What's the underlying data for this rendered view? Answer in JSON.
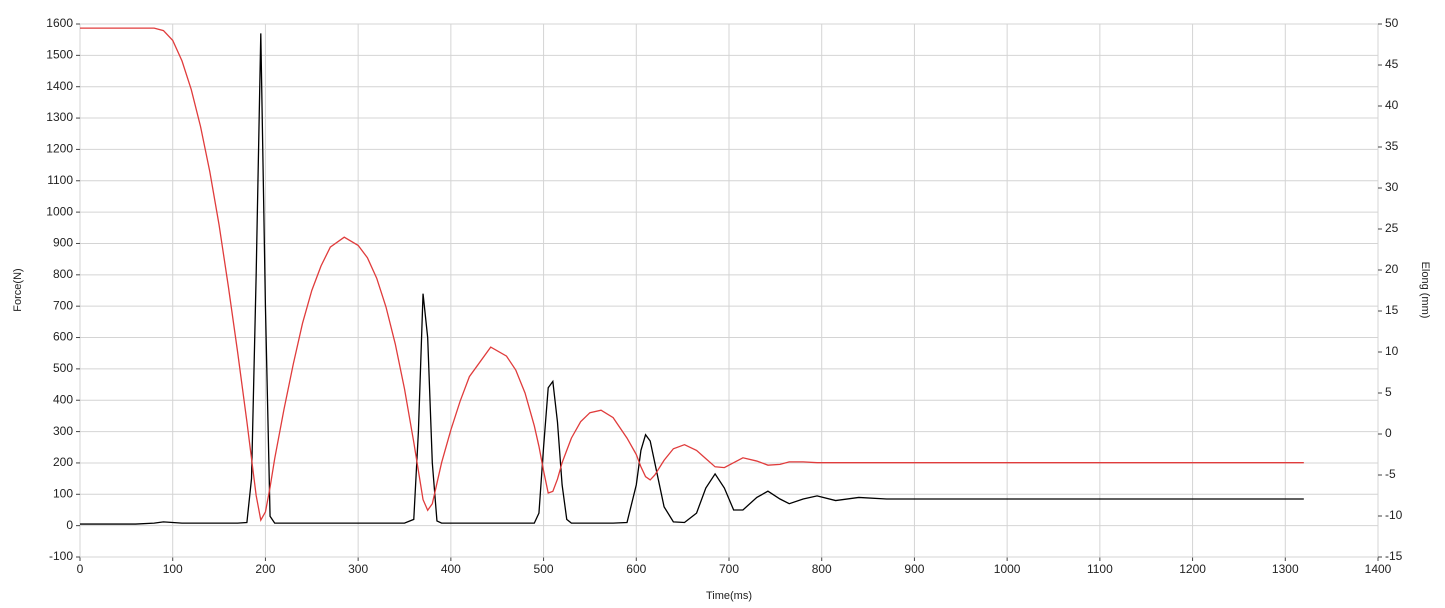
{
  "chart_data": {
    "type": "line",
    "x_label": "Time(ms)",
    "y_label": "Force(N)",
    "y2_label": "Elong (mm)",
    "x": [
      0,
      20,
      40,
      60,
      80,
      90,
      100,
      110,
      120,
      130,
      140,
      150,
      160,
      170,
      180,
      185,
      190,
      195,
      200,
      205,
      210,
      220,
      230,
      240,
      250,
      260,
      270,
      285,
      300,
      310,
      320,
      330,
      340,
      350,
      360,
      365,
      370,
      375,
      380,
      385,
      390,
      400,
      410,
      420,
      443,
      460,
      470,
      480,
      490,
      495,
      500,
      505,
      510,
      515,
      520,
      525,
      530,
      540,
      550,
      562,
      575,
      590,
      600,
      605,
      610,
      615,
      620,
      630,
      640,
      652,
      665,
      675,
      685,
      695,
      705,
      715,
      730,
      742,
      755,
      765,
      780,
      795,
      815,
      840,
      870,
      900,
      1000,
      1100,
      1200,
      1320
    ],
    "series": [
      {
        "name": "Force",
        "color": "#000000",
        "values": [
          5,
          5,
          5,
          5,
          8,
          12,
          10,
          8,
          8,
          8,
          8,
          8,
          8,
          8,
          10,
          150,
          800,
          1570,
          700,
          30,
          8,
          8,
          8,
          8,
          8,
          8,
          8,
          8,
          8,
          8,
          8,
          8,
          8,
          8,
          20,
          300,
          740,
          600,
          200,
          15,
          8,
          8,
          8,
          8,
          8,
          8,
          8,
          8,
          8,
          40,
          250,
          440,
          460,
          330,
          130,
          20,
          8,
          8,
          8,
          8,
          8,
          10,
          130,
          240,
          290,
          270,
          200,
          60,
          12,
          10,
          40,
          120,
          165,
          120,
          50,
          50,
          90,
          110,
          85,
          70,
          85,
          95,
          80,
          90,
          85,
          85,
          85,
          85,
          85,
          85
        ]
      },
      {
        "name": "Elong",
        "color": "#e03c3c",
        "axis": "y2",
        "values": [
          49.5,
          49.5,
          49.5,
          49.5,
          49.5,
          49.2,
          48,
          45.5,
          42,
          37.5,
          32,
          25.5,
          18,
          10,
          1.5,
          -3,
          -7.5,
          -10.5,
          -9.5,
          -6.5,
          -3,
          3,
          8.5,
          13.5,
          17.5,
          20.5,
          22.8,
          24,
          23,
          21.5,
          19,
          15.5,
          11,
          5.5,
          -1,
          -4.5,
          -8,
          -9.3,
          -8.5,
          -6,
          -3.5,
          0.5,
          4,
          7,
          10.6,
          9.5,
          7.8,
          5,
          1,
          -1.5,
          -4.5,
          -7.2,
          -7,
          -5.5,
          -3.5,
          -2,
          -0.5,
          1.5,
          2.6,
          2.9,
          2,
          -0.5,
          -2.5,
          -4,
          -5.2,
          -5.6,
          -5,
          -3.2,
          -1.8,
          -1.3,
          -2,
          -3,
          -4,
          -4.1,
          -3.5,
          -2.9,
          -3.3,
          -3.8,
          -3.7,
          -3.4,
          -3.4,
          -3.5,
          -3.5,
          -3.5,
          -3.5,
          -3.5,
          -3.5,
          -3.5,
          -3.5,
          -3.5
        ]
      }
    ],
    "xlim": [
      0,
      1400
    ],
    "xticks": [
      0,
      100,
      200,
      300,
      400,
      500,
      600,
      700,
      800,
      900,
      1000,
      1100,
      1200,
      1300,
      1400
    ],
    "ylim": [
      -100,
      1600
    ],
    "yticks": [
      -100,
      0,
      100,
      200,
      300,
      400,
      500,
      600,
      700,
      800,
      900,
      1000,
      1100,
      1200,
      1300,
      1400,
      1500,
      1600
    ],
    "y2lim": [
      -15,
      50
    ],
    "y2ticks": [
      -15,
      -10,
      -5,
      0,
      5,
      10,
      15,
      20,
      25,
      30,
      35,
      40,
      45,
      50
    ],
    "grid": true
  }
}
